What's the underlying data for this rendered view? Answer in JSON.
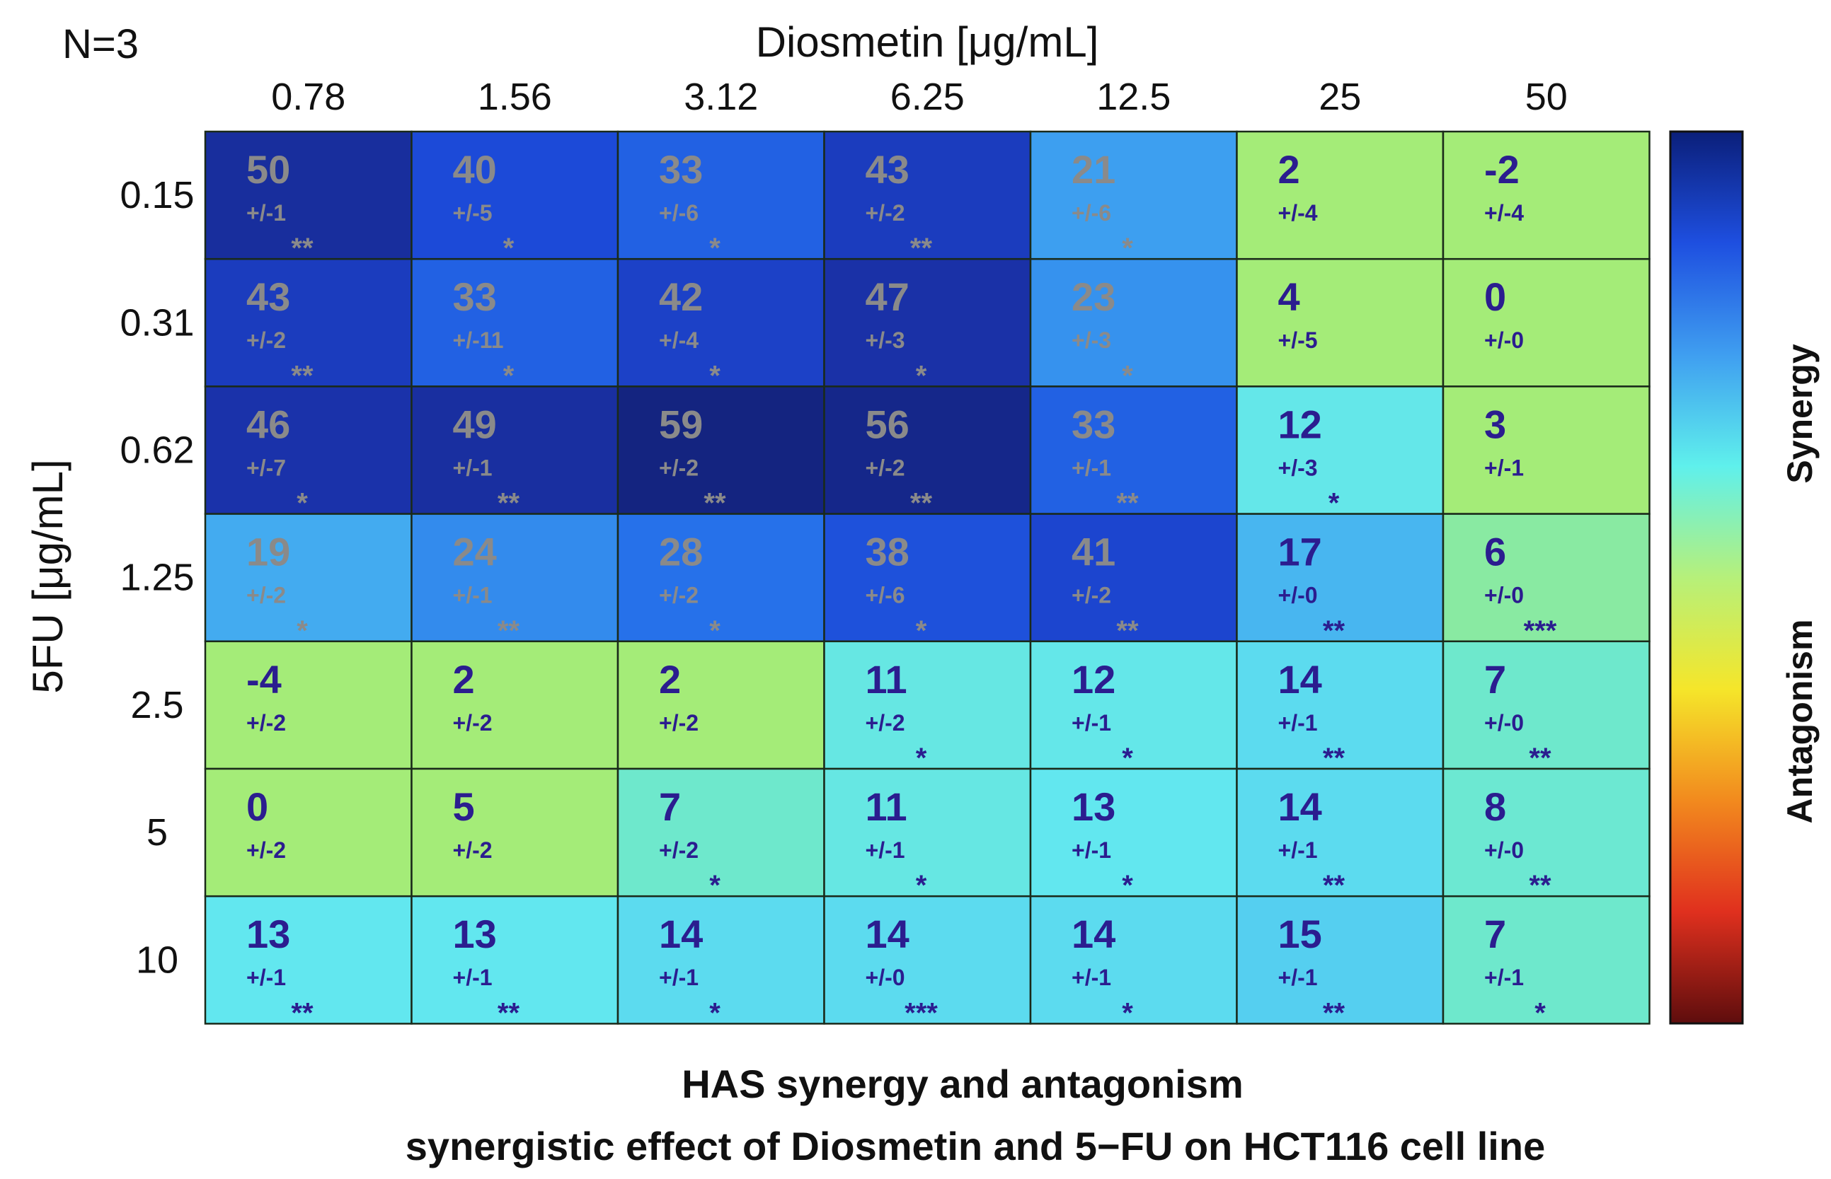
{
  "chart_data": {
    "type": "heatmap",
    "corner_label": "N=3",
    "xlabel": "Diosmetin [μg/mL]",
    "ylabel": "5FU [μg/mL]",
    "title": "HAS synergy and antagonism",
    "subtitle": "synergistic effect of Diosmetin and 5−FU on HCT116 cell line",
    "x_categories": [
      "0.78",
      "1.56",
      "3.12",
      "6.25",
      "12.5",
      "25",
      "50"
    ],
    "y_categories": [
      "0.15",
      "0.31",
      "0.62",
      "1.25",
      "2.5",
      "5",
      "10"
    ],
    "values": [
      [
        50,
        40,
        33,
        43,
        21,
        2,
        -2
      ],
      [
        43,
        33,
        42,
        47,
        23,
        4,
        0
      ],
      [
        46,
        49,
        59,
        56,
        33,
        12,
        3
      ],
      [
        19,
        24,
        28,
        38,
        41,
        17,
        6
      ],
      [
        -4,
        2,
        2,
        11,
        12,
        14,
        7
      ],
      [
        0,
        5,
        7,
        11,
        13,
        14,
        8
      ],
      [
        13,
        13,
        14,
        14,
        14,
        15,
        7
      ]
    ],
    "errors": [
      [
        "+/-1",
        "+/-5",
        "+/-6",
        "+/-2",
        "+/-6",
        "+/-4",
        "+/-4"
      ],
      [
        "+/-2",
        "+/-11",
        "+/-4",
        "+/-3",
        "+/-3",
        "+/-5",
        "+/-0"
      ],
      [
        "+/-7",
        "+/-1",
        "+/-2",
        "+/-2",
        "+/-1",
        "+/-3",
        "+/-1"
      ],
      [
        "+/-2",
        "+/-1",
        "+/-2",
        "+/-6",
        "+/-2",
        "+/-0",
        "+/-0"
      ],
      [
        "+/-2",
        "+/-2",
        "+/-2",
        "+/-2",
        "+/-1",
        "+/-1",
        "+/-0"
      ],
      [
        "+/-2",
        "+/-2",
        "+/-2",
        "+/-1",
        "+/-1",
        "+/-1",
        "+/-0"
      ],
      [
        "+/-1",
        "+/-1",
        "+/-1",
        "+/-0",
        "+/-1",
        "+/-1",
        "+/-1"
      ]
    ],
    "significance": [
      [
        "**",
        "*",
        "*",
        "**",
        "*",
        "",
        ""
      ],
      [
        "**",
        "*",
        "*",
        "*",
        "*",
        "",
        ""
      ],
      [
        "*",
        "**",
        "**",
        "**",
        "**",
        "*",
        ""
      ],
      [
        "*",
        "**",
        "*",
        "*",
        "**",
        "**",
        "***"
      ],
      [
        "",
        "",
        "",
        "*",
        "*",
        "**",
        "**"
      ],
      [
        "",
        "",
        "*",
        "*",
        "*",
        "**",
        "**"
      ],
      [
        "**",
        "**",
        "*",
        "***",
        "*",
        "**",
        "*"
      ]
    ],
    "colorbar": {
      "labels": [
        "Synergy",
        "Antagonism"
      ],
      "colormap": [
        "#0b1f7a",
        "#1e4fe0",
        "#3f9ef0",
        "#5ff0ec",
        "#b6f07a",
        "#f5e62a",
        "#f28a1e",
        "#e0301e",
        "#5e0d0d"
      ]
    },
    "colors": {
      "cell_border": "#1a2a1a",
      "text_light_bg": "#2b1d8f",
      "text_dark_bg": "#8a8a8a"
    }
  }
}
